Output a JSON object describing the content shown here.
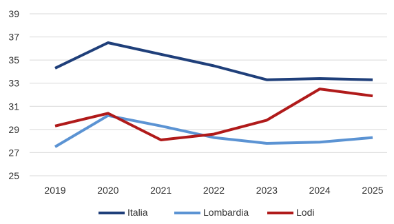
{
  "chart_data": {
    "type": "line",
    "title": "",
    "xlabel": "",
    "ylabel": "",
    "x": [
      "2019",
      "2020",
      "2021",
      "2022",
      "2023",
      "2024",
      "2025"
    ],
    "ylim": [
      25,
      39
    ],
    "yticks": [
      25,
      27,
      29,
      31,
      33,
      35,
      37,
      39
    ],
    "grid": "horizontal",
    "legend": "bottom",
    "series": [
      {
        "name": "Italia",
        "color": "#1f3f7a",
        "values": [
          34.3,
          36.5,
          35.5,
          34.5,
          33.3,
          33.4,
          33.3
        ]
      },
      {
        "name": "Lombardia",
        "color": "#5b93d3",
        "values": [
          27.5,
          30.2,
          29.3,
          28.3,
          27.8,
          27.9,
          28.3
        ]
      },
      {
        "name": "Lodi",
        "color": "#b01a1a",
        "values": [
          29.3,
          30.4,
          28.1,
          28.6,
          29.8,
          32.5,
          31.9
        ]
      }
    ]
  }
}
